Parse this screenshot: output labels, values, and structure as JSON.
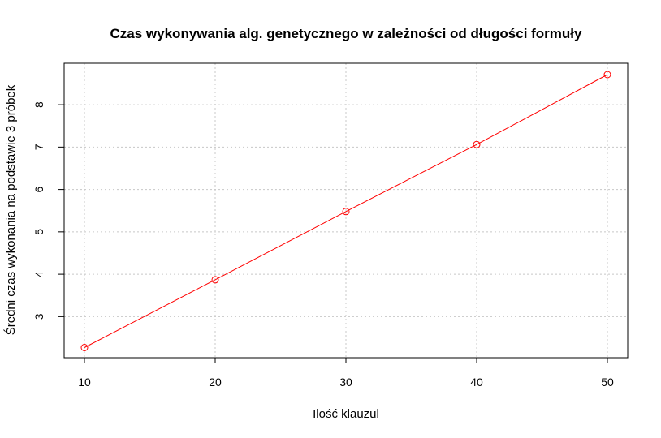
{
  "chart_data": {
    "type": "line",
    "title": "Czas wykonywania alg. genetycznego w zależności od długości formuły",
    "xlabel": "Ilość klauzul",
    "ylabel": "Średni czas wykonania na podstawie 3 próbek",
    "x": [
      10,
      20,
      30,
      40,
      50
    ],
    "series": [
      {
        "values": [
          2.27,
          3.87,
          5.48,
          7.06,
          8.71
        ],
        "color": "#ff0000",
        "marker": "open-circle"
      }
    ],
    "xlim": [
      10,
      50
    ],
    "ylim": [
      2.27,
      8.71
    ],
    "xticks": [
      10,
      20,
      30,
      40,
      50
    ],
    "yticks": [
      3,
      4,
      5,
      6,
      7,
      8
    ],
    "grid": true,
    "legend": "none"
  }
}
